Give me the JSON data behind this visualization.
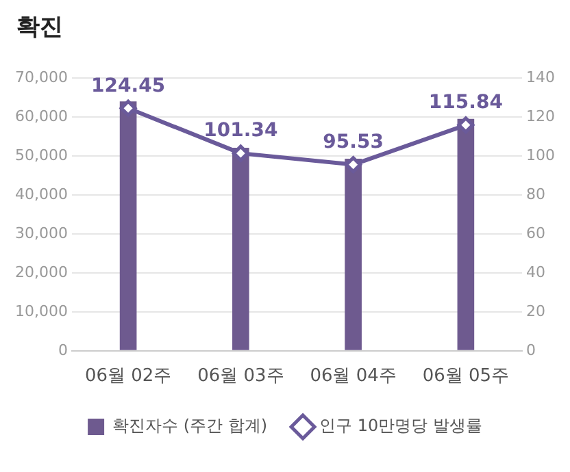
{
  "chart_data": {
    "type": "bar",
    "title": "확진",
    "categories": [
      "06월 02주",
      "06월 03주",
      "06월 04주",
      "06월 05주"
    ],
    "series": [
      {
        "name": "확진자수 (주간 합계)",
        "color": "#6e5a8f",
        "values": [
          64000,
          52100,
          49300,
          59500
        ]
      },
      {
        "name": "인구 10만명당 발생률",
        "type": "line",
        "axis": "y2",
        "color": "#6a5a9a",
        "marker": "diamond",
        "values": [
          124.45,
          101.34,
          95.53,
          115.84
        ],
        "value_labels": [
          "124.45",
          "101.34",
          "95.53",
          "115.84"
        ]
      }
    ],
    "ylim": [
      0,
      70000
    ],
    "yticks": [
      {
        "value": 0,
        "label": "0"
      },
      {
        "value": 10000,
        "label": "10,000"
      },
      {
        "value": 20000,
        "label": "20,000"
      },
      {
        "value": 30000,
        "label": "30,000"
      },
      {
        "value": 40000,
        "label": "40,000"
      },
      {
        "value": 50000,
        "label": "50,000"
      },
      {
        "value": 60000,
        "label": "60,000"
      },
      {
        "value": 70000,
        "label": "70,000"
      }
    ],
    "y2lim": [
      0,
      140
    ],
    "y2ticks": [
      0,
      20,
      40,
      60,
      80,
      100,
      120,
      140
    ],
    "grid": "y",
    "legend": "bottom"
  }
}
